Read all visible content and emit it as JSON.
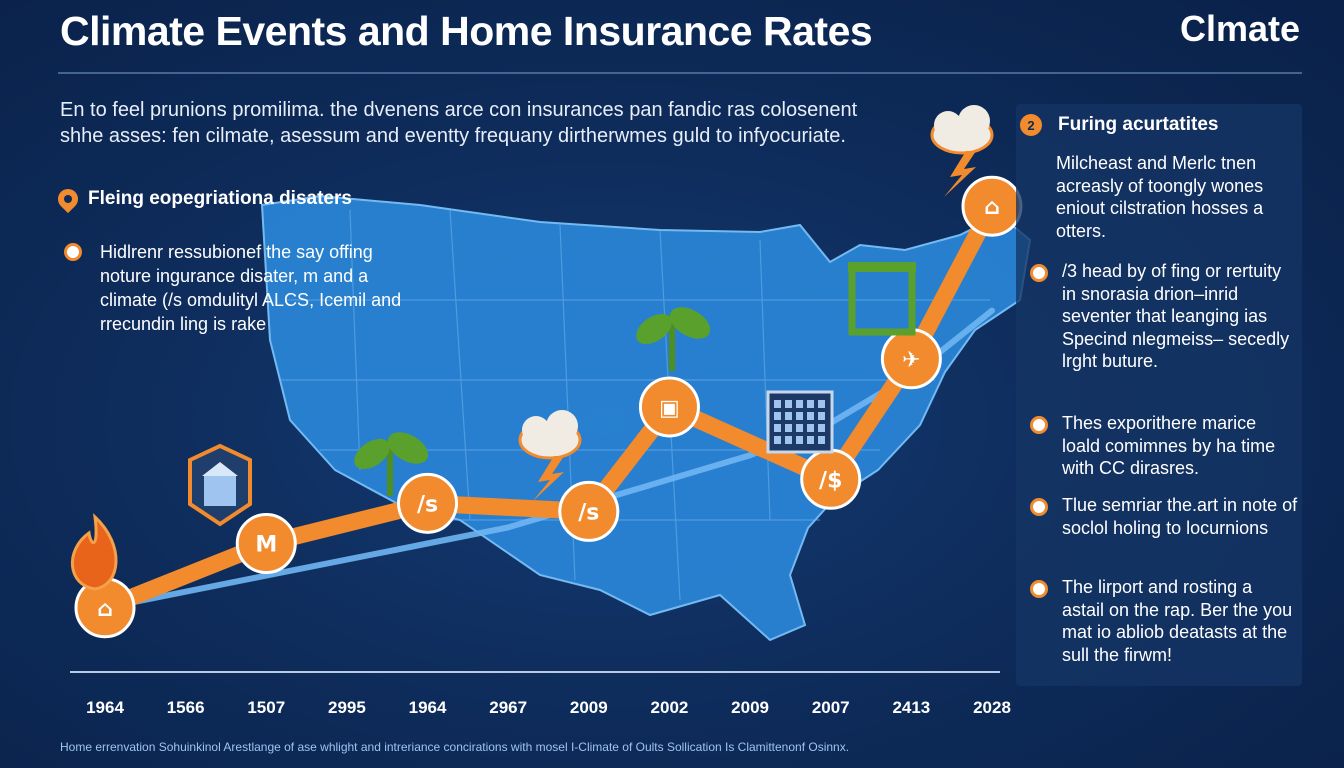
{
  "header": {
    "title": "Climate Events and Home Insurance Rates",
    "brand": "Clmate"
  },
  "intro": "En to feel prunions promilima. the dvenens arce con insurances pan fandic ras colosenent shhe asses: fen cilmate, asessum and eventty frequany dirtherwmes guld to infyocuriate.",
  "left_section": {
    "heading": "Fleing eopegriationa disaters",
    "bullet": "Hidlrenr ressubionef the say offing noture ingurance disater, m and a climate (/s omdulityl ALCS, Icemil and rrecundin ling is rake"
  },
  "right_panel": {
    "heading_badge": "2",
    "heading": "Furing acurtatites",
    "intro": "Milcheast and Merlc tnen acreasly of toongly wones eniout cilstration hosses a otters.",
    "items": [
      "/3 head by of fing or rertuity in snorasia drion–inrid seventer that leanging ias Specind nlegmeiss– secedly lrght buture.",
      "Thes exporithere marice loald comimnes by ha time with CC dirasres.",
      "Tlue semriar the.art in note of soclol holing to locurnions",
      "The lirport and rosting a astail on the rap. Ber the you mat io abliob deatasts at the sull the firwm!"
    ]
  },
  "footer": "Home errenvation Sohuinkinol Arestlange of ase whlight and intreriance concirations with mosel I-Climate of Oults Sollication Is Clamittenonf Osinnx.",
  "colors": {
    "background": "#0d2a58",
    "orange": "#f28a2e",
    "blue_line": "#6fb6f2",
    "map": "#2f8fe0",
    "green": "#5aa02c"
  },
  "chart_data": {
    "type": "line",
    "title": "Climate Events and Home Insurance Rates",
    "xlabel": "",
    "ylabel": "",
    "categories": [
      "1964",
      "1566",
      "1507",
      "2995",
      "1964",
      "2967",
      "2009",
      "2002",
      "2009",
      "2007",
      "2413",
      "2028"
    ],
    "series": [
      {
        "color": "#f28a2e",
        "values": [
          0.8,
          null,
          1.6,
          null,
          2.1,
          null,
          2.0,
          3.3,
          null,
          2.4,
          3.9,
          5.8
        ],
        "marker_labels": [
          "⌂",
          "M",
          "/s",
          "/s",
          "▣",
          "/$",
          "✈",
          "⌂"
        ]
      },
      {
        "color": "#6fb6f2",
        "values": [
          0.8,
          1.0,
          1.2,
          1.4,
          1.6,
          1.8,
          2.1,
          2.4,
          2.7,
          3.1,
          3.7,
          4.5
        ]
      }
    ],
    "ylim": [
      0,
      6.5
    ],
    "grid": false,
    "legend": "none",
    "event_icons": [
      "flame",
      "shield-building",
      "plant",
      "storm-cloud",
      "plant",
      "building",
      "box",
      "storm-cloud"
    ]
  }
}
